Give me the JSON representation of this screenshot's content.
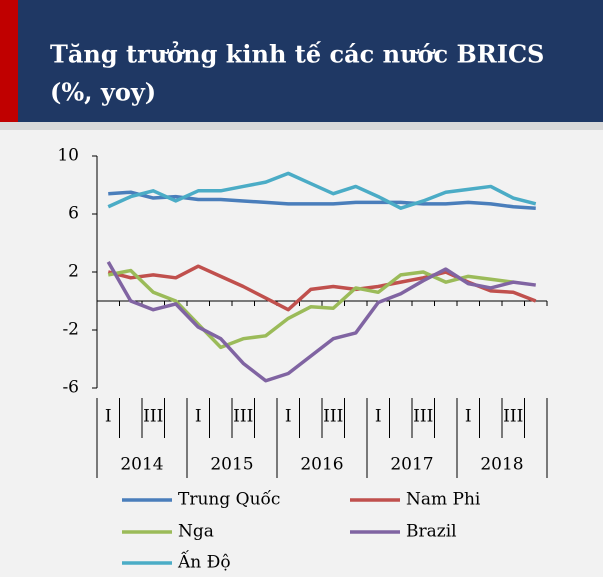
{
  "chart_data": {
    "type": "line",
    "title": "Tăng trưởng kinh tế các nước BRICS",
    "subtitle": "(%, yoy)",
    "categories": [
      "I",
      null,
      "III",
      null,
      "I",
      null,
      "III",
      null,
      "I",
      null,
      "III",
      null,
      "I",
      null,
      "III",
      null,
      "I",
      null,
      "III",
      null
    ],
    "years": [
      "2014",
      "2015",
      "2016",
      "2017",
      "2018"
    ],
    "ylim": [
      -6,
      10
    ],
    "yticks": [
      10,
      6,
      2,
      -2,
      -6
    ],
    "series": [
      {
        "name": "Trung Quốc",
        "color": "#4a7ebb",
        "values": [
          7.4,
          7.5,
          7.1,
          7.2,
          7.0,
          7.0,
          6.9,
          6.8,
          6.7,
          6.7,
          6.7,
          6.8,
          6.8,
          6.8,
          6.7,
          6.7,
          6.8,
          6.7,
          6.5,
          6.4
        ]
      },
      {
        "name": "Nam Phi",
        "color": "#c0504d",
        "values": [
          2.0,
          1.6,
          1.8,
          1.6,
          2.4,
          1.7,
          1.0,
          0.2,
          -0.6,
          0.8,
          1.0,
          0.8,
          1.0,
          1.3,
          1.6,
          2.0,
          1.3,
          0.7,
          0.6,
          0.0
        ]
      },
      {
        "name": "Nga",
        "color": "#9bbb59",
        "values": [
          1.8,
          2.1,
          0.6,
          0.0,
          -1.6,
          -3.2,
          -2.6,
          -2.4,
          -1.2,
          -0.4,
          -0.5,
          0.9,
          0.6,
          1.8,
          2.0,
          1.3,
          1.7,
          1.5,
          1.3,
          null
        ]
      },
      {
        "name": "Brazil",
        "color": "#8064a2",
        "values": [
          2.7,
          0.0,
          -0.6,
          -0.2,
          -1.8,
          -2.6,
          -4.3,
          -5.5,
          -5.0,
          -3.8,
          -2.6,
          -2.2,
          -0.1,
          0.5,
          1.4,
          2.2,
          1.2,
          0.9,
          1.3,
          1.1
        ]
      },
      {
        "name": "Ấn Độ",
        "color": "#4bacc6",
        "values": [
          6.5,
          7.2,
          7.6,
          6.9,
          7.6,
          7.6,
          7.9,
          8.2,
          8.8,
          8.1,
          7.4,
          7.9,
          7.2,
          6.4,
          6.9,
          7.5,
          7.7,
          7.9,
          7.1,
          6.7
        ]
      }
    ]
  }
}
